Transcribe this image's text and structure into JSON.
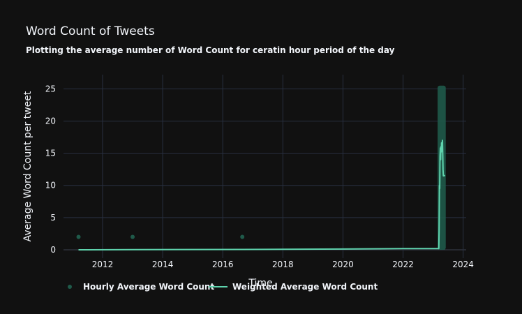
{
  "chart_data": {
    "type": "line",
    "title": "Word Count of Tweets",
    "subtitle": "Plotting the average number of Word Count for ceratin hour period of the day",
    "xlabel": "Time",
    "ylabel": "Average Word Count per tweet",
    "xlim": [
      2010.7,
      2024.1
    ],
    "ylim": [
      -1.3,
      27.2
    ],
    "x_ticks": [
      2012,
      2014,
      2016,
      2018,
      2020,
      2022,
      2024
    ],
    "x_tick_labels": [
      "2012",
      "2014",
      "2016",
      "2018",
      "2020",
      "2022",
      "2024"
    ],
    "y_ticks": [
      0,
      5,
      10,
      15,
      20,
      25
    ],
    "y_tick_labels": [
      "0",
      "5",
      "10",
      "15",
      "20",
      "25"
    ],
    "grid": true,
    "legend_position": "bottom",
    "series": [
      {
        "name": "Hourly Average Word Count",
        "kind": "scatter",
        "color": "#1f5a4a",
        "points": [
          {
            "x": 2011.2,
            "y": 2
          },
          {
            "x": 2013.0,
            "y": 2
          },
          {
            "x": 2016.65,
            "y": 2
          }
        ],
        "band": {
          "x_start": 2023.15,
          "x_end": 2023.42,
          "y_min": 0,
          "y_max": 25.5
        }
      },
      {
        "name": "Weighted Average Word Count",
        "kind": "line",
        "color": "#5fd3ad",
        "points": [
          {
            "x": 2011.2,
            "y": 0.0
          },
          {
            "x": 2013.0,
            "y": 0.02
          },
          {
            "x": 2016.65,
            "y": 0.05
          },
          {
            "x": 2018.0,
            "y": 0.08
          },
          {
            "x": 2020.0,
            "y": 0.12
          },
          {
            "x": 2022.0,
            "y": 0.18
          },
          {
            "x": 2023.18,
            "y": 0.2
          },
          {
            "x": 2023.19,
            "y": 0.2
          },
          {
            "x": 2023.2,
            "y": 3.0
          },
          {
            "x": 2023.21,
            "y": 10.0
          },
          {
            "x": 2023.22,
            "y": 9.5
          },
          {
            "x": 2023.23,
            "y": 14.5
          },
          {
            "x": 2023.24,
            "y": 15.8
          },
          {
            "x": 2023.25,
            "y": 14.0
          },
          {
            "x": 2023.26,
            "y": 16.0
          },
          {
            "x": 2023.27,
            "y": 15.2
          },
          {
            "x": 2023.28,
            "y": 16.6
          },
          {
            "x": 2023.29,
            "y": 15.5
          },
          {
            "x": 2023.3,
            "y": 16.2
          },
          {
            "x": 2023.31,
            "y": 17.0
          },
          {
            "x": 2023.32,
            "y": 15.0
          },
          {
            "x": 2023.33,
            "y": 12.5
          },
          {
            "x": 2023.34,
            "y": 11.5
          },
          {
            "x": 2023.37,
            "y": 11.5
          },
          {
            "x": 2023.39,
            "y": 11.6
          }
        ]
      }
    ]
  }
}
